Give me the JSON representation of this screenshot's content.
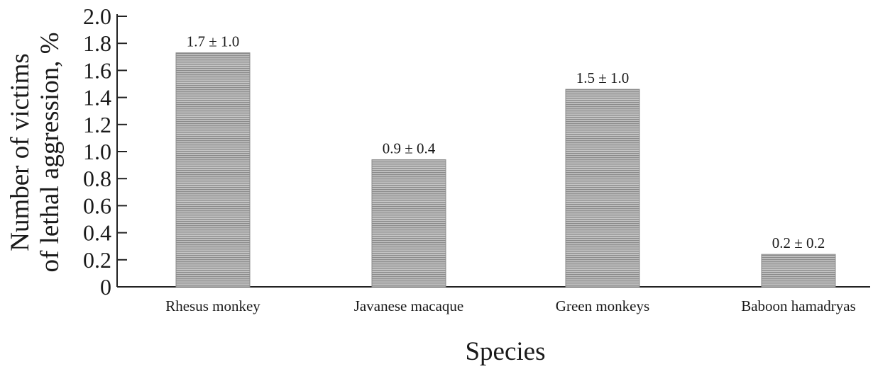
{
  "chart_data": {
    "type": "bar",
    "categories": [
      "Rhesus monkey",
      "Javanese macaque",
      "Green monkeys",
      "Baboon hamadryas"
    ],
    "values": [
      1.73,
      0.94,
      1.46,
      0.24
    ],
    "data_labels": [
      "1.7 ± 1.0",
      "0.9 ± 0.4",
      "1.5 ± 1.0",
      "0.2 ± 0.2"
    ],
    "title": "",
    "xlabel": "Species",
    "ylabel_lines": [
      "Number of victims",
      "of lethal aggression, %"
    ],
    "ylim": [
      0,
      2.0
    ],
    "yticks": [
      "0",
      "0.2",
      "0.4",
      "0.6",
      "0.8",
      "1.0",
      "1.2",
      "1.4",
      "1.6",
      "1.8",
      "2.0"
    ],
    "grid": false,
    "bar_color": "#a9a9a9"
  }
}
